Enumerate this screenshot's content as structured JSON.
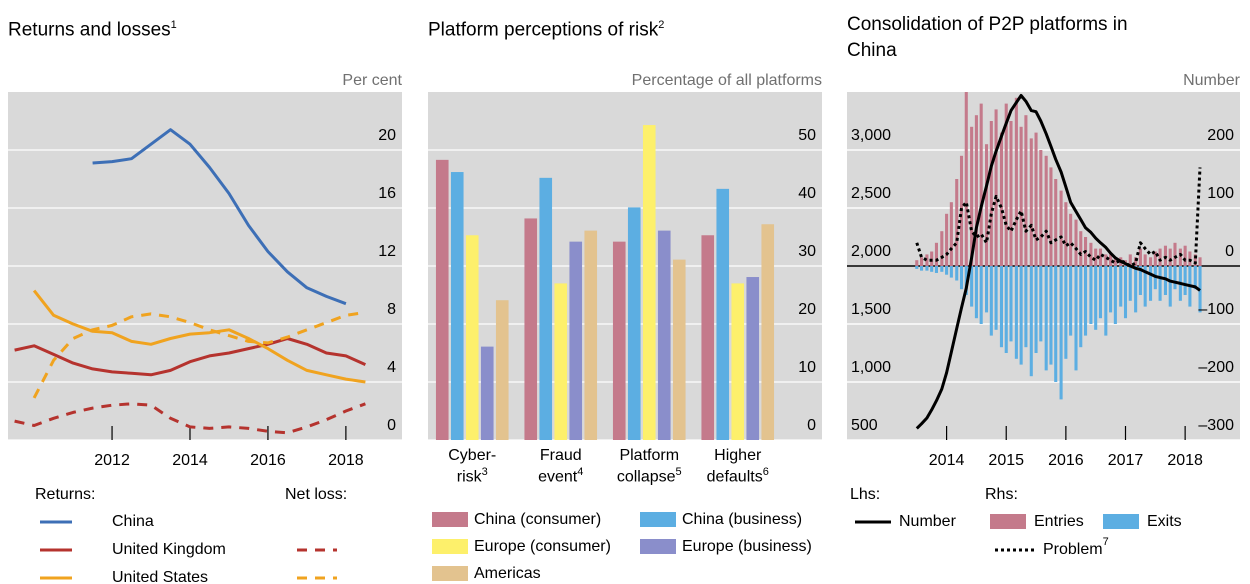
{
  "chart_data": [
    {
      "type": "line",
      "title": "Returns and losses",
      "title_note": "1",
      "unit": "Per cent",
      "x": [
        2009.5,
        2010,
        2010.5,
        2011,
        2011.5,
        2012,
        2012.5,
        2013,
        2013.5,
        2014,
        2014.5,
        2015,
        2015.5,
        2016,
        2016.5,
        2017,
        2017.5,
        2018,
        2018.5
      ],
      "xlim": [
        2009.33,
        2019.44
      ],
      "xticks": [
        2012,
        2014,
        2016,
        2018
      ],
      "ylim": [
        0,
        24
      ],
      "yticks": [
        0,
        4,
        8,
        12,
        16,
        20
      ],
      "grid": true,
      "legend_titles": [
        "Returns:",
        "Net loss:"
      ],
      "series": [
        {
          "name": "China",
          "color": "#3d6fb6",
          "returns": [
            null,
            null,
            null,
            null,
            19.1,
            19.2,
            19.4,
            20.4,
            21.4,
            20.4,
            18.8,
            17.0,
            14.8,
            13.0,
            11.6,
            10.5,
            9.9,
            9.4,
            null
          ]
        },
        {
          "name": "United Kingdom",
          "color": "#b5332e",
          "returns": [
            6.2,
            6.5,
            5.9,
            5.3,
            4.9,
            4.7,
            4.6,
            4.5,
            4.8,
            5.4,
            5.8,
            6.0,
            6.3,
            6.6,
            7.0,
            6.6,
            6.0,
            5.8,
            5.2
          ],
          "net_loss": [
            1.3,
            1.0,
            1.5,
            1.9,
            2.2,
            2.4,
            2.5,
            2.4,
            1.5,
            0.9,
            0.8,
            0.9,
            0.8,
            0.6,
            0.5,
            0.9,
            1.4,
            2.0,
            2.5
          ]
        },
        {
          "name": "United States",
          "color": "#f0a31f",
          "returns": [
            null,
            10.3,
            8.6,
            8.0,
            7.5,
            7.4,
            6.8,
            6.6,
            7.0,
            7.3,
            7.4,
            7.6,
            7.0,
            6.3,
            5.5,
            4.8,
            4.5,
            4.2,
            4.0
          ],
          "net_loss": [
            null,
            2.9,
            5.5,
            7.0,
            7.6,
            7.9,
            8.5,
            8.7,
            8.5,
            8.1,
            7.6,
            7.2,
            6.8,
            6.7,
            7.1,
            7.6,
            8.1,
            8.6,
            8.8
          ]
        }
      ]
    },
    {
      "type": "bar",
      "title": "Platform perceptions of risk",
      "title_note": "2",
      "unit": "Percentage of all platforms",
      "categories": [
        "Cyber-risk",
        "Fraud event",
        "Platform collapse",
        "Higher defaults"
      ],
      "category_notes": [
        "3",
        "4",
        "5",
        "6"
      ],
      "ylim": [
        0,
        60
      ],
      "yticks": [
        0,
        10,
        20,
        30,
        40,
        50
      ],
      "grid": true,
      "series": [
        {
          "name": "China (consumer)",
          "color": "#c47a8b",
          "values": [
            48.3,
            38.2,
            34.2,
            35.3
          ]
        },
        {
          "name": "China (business)",
          "color": "#5caee2",
          "values": [
            46.2,
            45.2,
            40.1,
            43.3
          ]
        },
        {
          "name": "Europe (consumer)",
          "color": "#fdf06b",
          "values": [
            35.3,
            27.0,
            54.3,
            27.0
          ]
        },
        {
          "name": "Europe (business)",
          "color": "#8a8ecb",
          "values": [
            16.1,
            34.2,
            36.1,
            28.1
          ]
        },
        {
          "name": "Americas",
          "color": "#e3c38f",
          "values": [
            24.1,
            36.1,
            31.1,
            37.2
          ]
        }
      ]
    },
    {
      "type": "combo",
      "title": "Consolidation of P2P platforms in China",
      "unit": "Number",
      "x": [
        2013.5,
        2013.58,
        2013.67,
        2013.75,
        2013.83,
        2013.92,
        2014,
        2014.08,
        2014.17,
        2014.25,
        2014.33,
        2014.42,
        2014.5,
        2014.58,
        2014.67,
        2014.75,
        2014.83,
        2014.92,
        2015,
        2015.08,
        2015.17,
        2015.25,
        2015.33,
        2015.42,
        2015.5,
        2015.58,
        2015.67,
        2015.75,
        2015.83,
        2015.92,
        2016,
        2016.08,
        2016.17,
        2016.25,
        2016.33,
        2016.42,
        2016.5,
        2016.58,
        2016.67,
        2016.75,
        2016.83,
        2016.92,
        2017,
        2017.08,
        2017.17,
        2017.25,
        2017.33,
        2017.42,
        2017.5,
        2017.58,
        2017.67,
        2017.75,
        2017.83,
        2017.92,
        2018,
        2018.08,
        2018.17,
        2018.25
      ],
      "xlim": [
        2012.33,
        2018.92
      ],
      "xticks": [
        2014,
        2015,
        2016,
        2017,
        2018
      ],
      "ylim": [
        500,
        3500
      ],
      "yticks": [
        500,
        {
          "value": 1000,
          "label": "1,000"
        },
        {
          "value": 1500,
          "label": "1,500"
        },
        {
          "value": 2000,
          "label": "2,000"
        },
        {
          "value": 2500,
          "label": "2,500"
        },
        {
          "value": 3000,
          "label": "3,000"
        }
      ],
      "y2lim": [
        -300,
        300
      ],
      "y2ticks": [
        {
          "value": -300,
          "label": "–300"
        },
        {
          "value": -200,
          "label": "–200"
        },
        {
          "value": -100,
          "label": "–100"
        },
        0,
        100,
        200
      ],
      "grid": true,
      "legend_titles": [
        "Lhs:",
        "Rhs:"
      ],
      "series": [
        {
          "name": "Number",
          "type": "line",
          "style": "solid",
          "color": "#000000",
          "axis": "y",
          "values": [
            600,
            640,
            690,
            760,
            840,
            940,
            1080,
            1260,
            1460,
            1640,
            1810,
            2070,
            2330,
            2510,
            2690,
            2860,
            2990,
            3120,
            3230,
            3340,
            3410,
            3470,
            3420,
            3340,
            3330,
            3250,
            3140,
            3030,
            2920,
            2810,
            2680,
            2550,
            2470,
            2400,
            2330,
            2290,
            2240,
            2200,
            2160,
            2110,
            2070,
            2040,
            2020,
            2000,
            1980,
            1970,
            1950,
            1930,
            1910,
            1900,
            1890,
            1870,
            1860,
            1850,
            1840,
            1830,
            1820,
            1790
          ]
        },
        {
          "name": "Entries",
          "type": "bar",
          "color": "#c47a8b",
          "axis": "y2",
          "values": [
            10,
            15,
            20,
            25,
            40,
            60,
            90,
            110,
            150,
            190,
            305,
            240,
            260,
            280,
            210,
            250,
            270,
            230,
            280,
            250,
            290,
            240,
            260,
            220,
            230,
            200,
            190,
            170,
            150,
            130,
            110,
            90,
            80,
            60,
            50,
            40,
            30,
            30,
            20,
            20,
            15,
            15,
            10,
            20,
            15,
            30,
            20,
            15,
            25,
            30,
            35,
            30,
            40,
            30,
            35,
            25,
            20,
            15
          ]
        },
        {
          "name": "Exits",
          "type": "bar",
          "color": "#5caee2",
          "axis": "y2",
          "values": [
            -5,
            -8,
            -8,
            -10,
            -12,
            -10,
            -15,
            -20,
            -25,
            -40,
            -50,
            -70,
            -90,
            -100,
            -80,
            -120,
            -110,
            -140,
            -150,
            -130,
            -160,
            -170,
            -140,
            -190,
            -150,
            -130,
            -180,
            -170,
            -200,
            -230,
            -160,
            -120,
            -180,
            -140,
            -120,
            -100,
            -110,
            -90,
            -120,
            -80,
            -100,
            -70,
            -90,
            -60,
            -80,
            -50,
            -70,
            -60,
            -40,
            -60,
            -50,
            -70,
            -40,
            -60,
            -50,
            -70,
            -40,
            -80
          ]
        },
        {
          "name": "Problem",
          "note": "7",
          "type": "line",
          "style": "dotted",
          "color": "#000000",
          "axis": "y2",
          "values": [
            40,
            15,
            10,
            10,
            10,
            15,
            20,
            30,
            40,
            100,
            110,
            60,
            50,
            55,
            40,
            90,
            120,
            100,
            70,
            60,
            80,
            95,
            60,
            70,
            45,
            50,
            60,
            40,
            45,
            50,
            35,
            40,
            30,
            20,
            25,
            15,
            10,
            20,
            15,
            10,
            5,
            10,
            5,
            0,
            5,
            40,
            30,
            20,
            25,
            10,
            15,
            10,
            15,
            20,
            10,
            10,
            5,
            170
          ]
        }
      ]
    }
  ]
}
